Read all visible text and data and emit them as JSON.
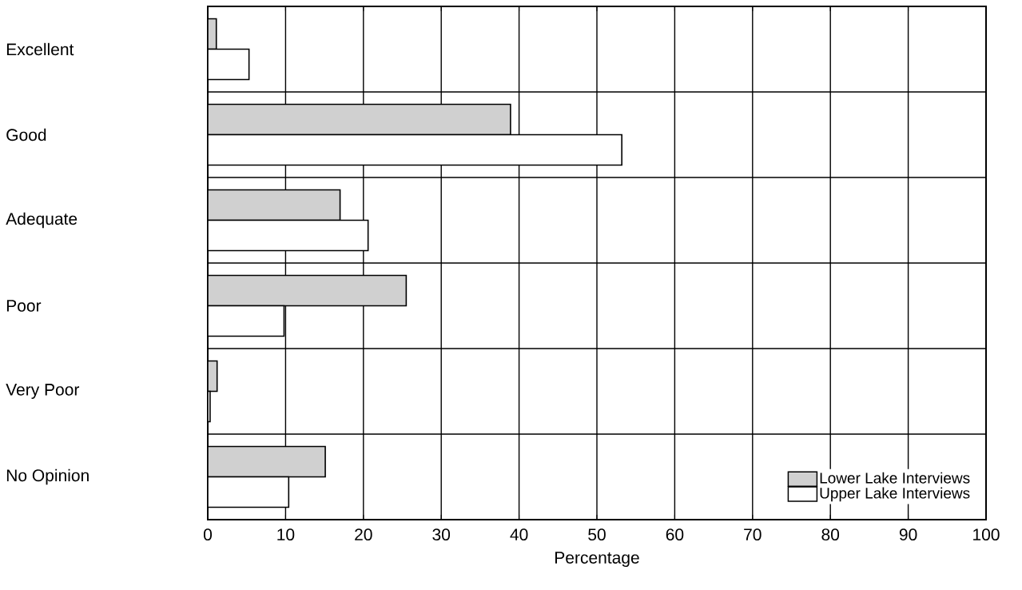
{
  "chart_data": {
    "type": "bar",
    "orientation": "horizontal",
    "xlabel": "Percentage",
    "categories": [
      "Excellent",
      "Good",
      "Adequate",
      "Poor",
      "Very Poor",
      "No Opinion"
    ],
    "series": [
      {
        "name": "Lower Lake Interviews",
        "color": "#d0d0d0",
        "values": [
          1.1,
          38.9,
          17.0,
          25.5,
          1.2,
          15.1
        ]
      },
      {
        "name": "Upper Lake Interviews",
        "color": "#ffffff",
        "values": [
          5.3,
          53.2,
          20.6,
          9.8,
          0.3,
          10.4
        ]
      }
    ],
    "xlim": [
      0,
      100
    ],
    "xticks": [
      0,
      10,
      20,
      30,
      40,
      50,
      60,
      70,
      80,
      90,
      100
    ],
    "grid": true,
    "legend": "bottom right"
  }
}
